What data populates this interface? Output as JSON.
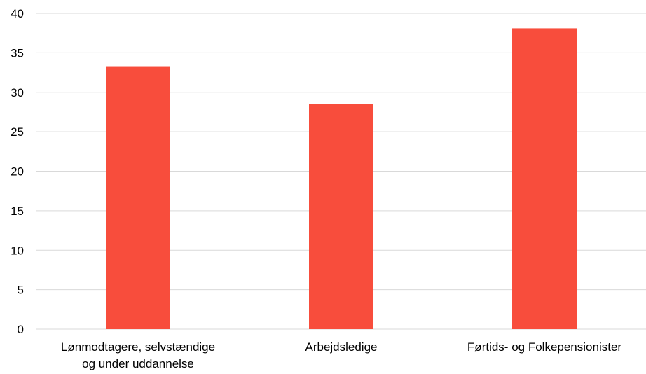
{
  "chart_data": {
    "type": "bar",
    "categories": [
      [
        "Lønmodtagere, selvstændige",
        "og under uddannelse"
      ],
      [
        "Arbejdsledige"
      ],
      [
        "Førtids- og Folkepensionister"
      ]
    ],
    "values": [
      33.3,
      28.5,
      38.1
    ],
    "ylim": [
      0,
      40
    ],
    "yticks": [
      0,
      5,
      10,
      15,
      20,
      25,
      30,
      35,
      40
    ],
    "grid": true,
    "bar_color": "#f84d3c",
    "title": "",
    "xlabel": "",
    "ylabel": ""
  }
}
